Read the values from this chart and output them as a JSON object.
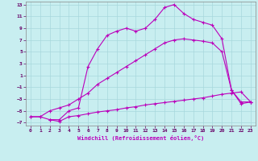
{
  "xlabel": "Windchill (Refroidissement éolien,°C)",
  "background_color": "#c8eef0",
  "grid_color": "#a8d8dc",
  "line_color": "#bb00bb",
  "xlim": [
    -0.5,
    23.5
  ],
  "ylim": [
    -7.5,
    13.5
  ],
  "xticks": [
    0,
    1,
    2,
    3,
    4,
    5,
    6,
    7,
    8,
    9,
    10,
    11,
    12,
    13,
    14,
    15,
    16,
    17,
    18,
    19,
    20,
    21,
    22,
    23
  ],
  "yticks": [
    -7,
    -5,
    -3,
    -1,
    1,
    3,
    5,
    7,
    9,
    11,
    13
  ],
  "line1_x": [
    0,
    1,
    2,
    3,
    4,
    5,
    6,
    7,
    8,
    9,
    10,
    11,
    12,
    13,
    14,
    15,
    16,
    17,
    18,
    19,
    20,
    21,
    22,
    23
  ],
  "line1_y": [
    -6,
    -6,
    -6.5,
    -6.8,
    -6,
    -5.8,
    -5.5,
    -5.2,
    -5.0,
    -4.8,
    -4.5,
    -4.3,
    -4.0,
    -3.8,
    -3.6,
    -3.4,
    -3.2,
    -3.0,
    -2.8,
    -2.5,
    -2.2,
    -2.0,
    -1.8,
    -3.5
  ],
  "line2_x": [
    0,
    1,
    2,
    3,
    4,
    5,
    6,
    7,
    8,
    9,
    10,
    11,
    12,
    13,
    14,
    15,
    16,
    17,
    18,
    19,
    20,
    21,
    22,
    23
  ],
  "line2_y": [
    -6,
    -6,
    -5,
    -4.5,
    -4,
    -3,
    -2,
    -0.5,
    0.5,
    1.5,
    2.5,
    3.5,
    4.5,
    5.5,
    6.5,
    7.0,
    7.2,
    7.0,
    6.8,
    6.5,
    5.0,
    -1.5,
    -3.5,
    -3.5
  ],
  "line3_x": [
    2,
    3,
    4,
    5,
    6,
    7,
    8,
    9,
    10,
    11,
    12,
    13,
    14,
    15,
    16,
    17,
    18,
    19,
    20,
    21,
    22,
    23
  ],
  "line3_y": [
    -6.5,
    -6.5,
    -5,
    -4.5,
    2.5,
    5.5,
    7.8,
    8.5,
    9.0,
    8.5,
    9.0,
    10.5,
    12.5,
    13.0,
    11.5,
    10.5,
    10.0,
    9.5,
    7.2,
    -1.5,
    -3.8,
    -3.5
  ]
}
